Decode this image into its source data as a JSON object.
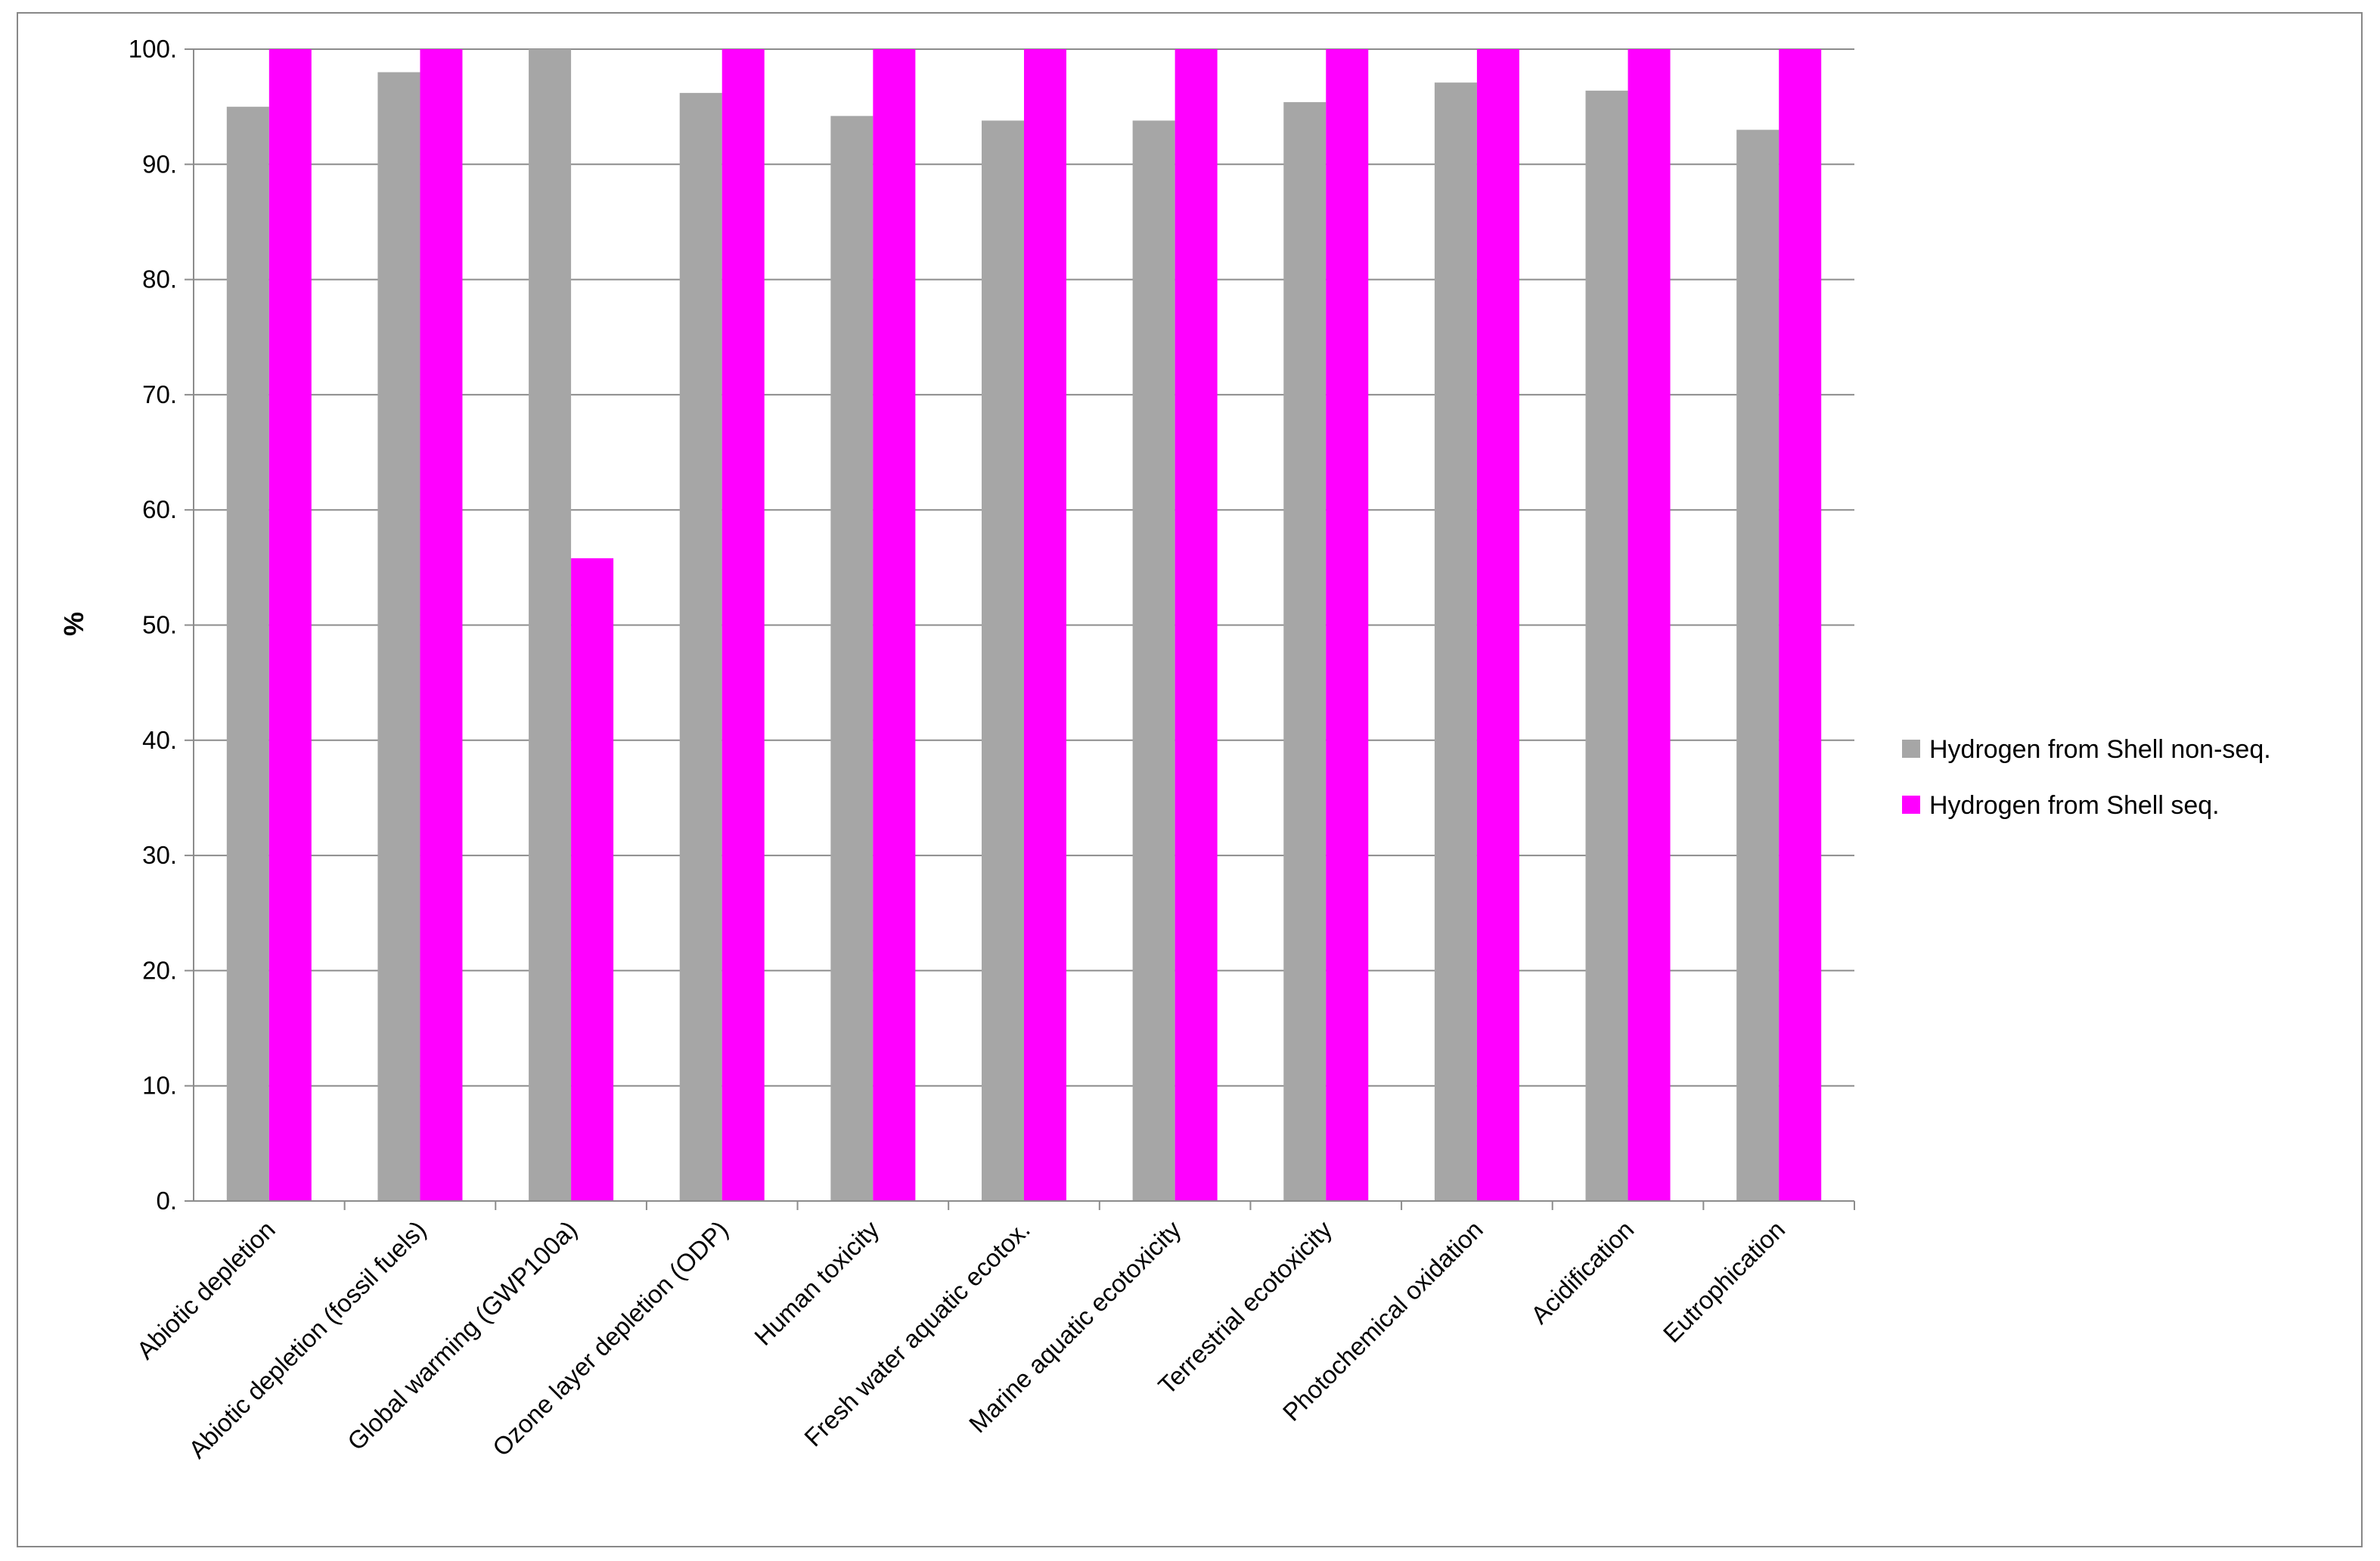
{
  "chart_data": {
    "type": "bar",
    "title": "",
    "xlabel": "",
    "ylabel": "%",
    "ylim": [
      0,
      100
    ],
    "y_ticks": [
      0,
      10,
      20,
      30,
      40,
      50,
      60,
      70,
      80,
      90,
      100
    ],
    "y_tick_labels": [
      "0.",
      "10.",
      "20.",
      "30.",
      "40.",
      "50.",
      "60.",
      "70.",
      "80.",
      "90.",
      "100."
    ],
    "grid": "horizontal",
    "legend_position": "right",
    "categories": [
      "Abiotic depletion",
      "Abiotic depletion (fossil fuels)",
      "Global warming (GWP100a)",
      "Ozone layer depletion (ODP)",
      "Human toxicity",
      "Fresh water aquatic ecotox.",
      "Marine aquatic ecotoxicity",
      "Terrestrial ecotoxicity",
      "Photochemical oxidation",
      "Acidification",
      "Eutrophication"
    ],
    "series": [
      {
        "name": "Hydrogen from  Shell non-seq.",
        "color": "#A6A6A6",
        "values": [
          95.0,
          98.0,
          100.0,
          96.2,
          94.2,
          93.8,
          93.8,
          95.4,
          97.1,
          96.4,
          93.0
        ]
      },
      {
        "name": "Hydrogen from  Shell seq.",
        "color": "#FF00FF",
        "values": [
          100.0,
          100.0,
          55.8,
          100.0,
          100.0,
          100.0,
          100.0,
          100.0,
          100.0,
          100.0,
          100.0
        ]
      }
    ]
  }
}
